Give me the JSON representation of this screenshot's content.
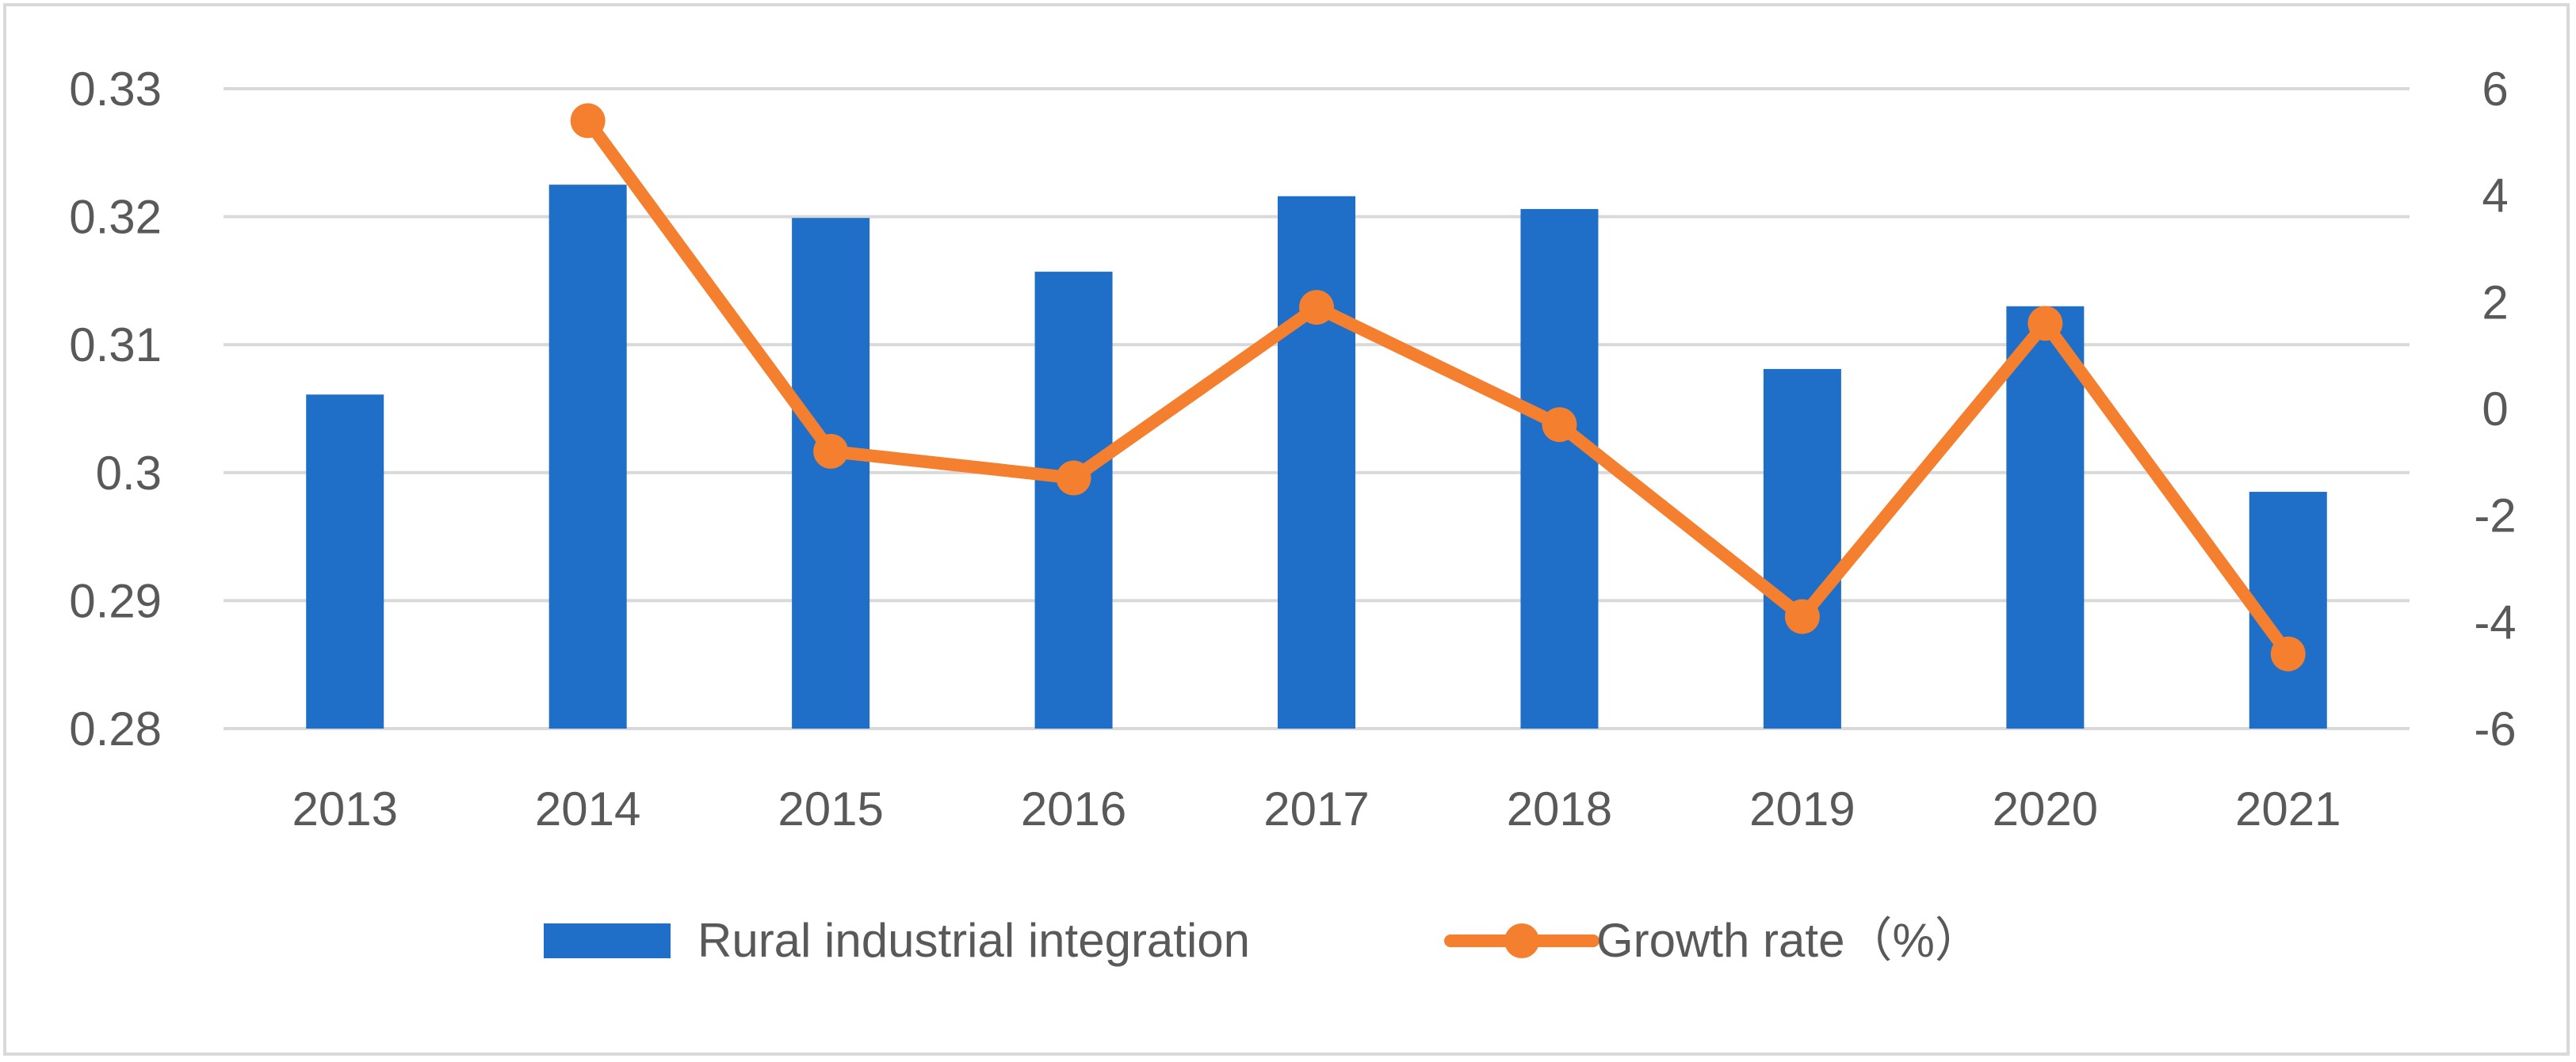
{
  "chart_data": {
    "type": "bar+line",
    "categories": [
      "2013",
      "2014",
      "2015",
      "2016",
      "2017",
      "2018",
      "2019",
      "2020",
      "2021"
    ],
    "series": [
      {
        "name": "Rural industrial integration",
        "type": "bar",
        "axis": "left",
        "color": "#1f6fc8",
        "values": [
          0.3061,
          0.3225,
          0.3199,
          0.3157,
          0.3216,
          0.3206,
          0.3081,
          0.313,
          0.2985
        ]
      },
      {
        "name": "Growth rate（%）",
        "type": "line",
        "axis": "right",
        "color": "#f47f2f",
        "values": [
          null,
          5.4,
          -0.8,
          -1.3,
          1.9,
          -0.3,
          -3.9,
          1.6,
          -4.6
        ]
      }
    ],
    "y_left": {
      "min": 0.28,
      "max": 0.33,
      "ticks": [
        "0.28",
        "0.29",
        "0.3",
        "0.31",
        "0.32",
        "0.33"
      ],
      "tick_values": [
        0.28,
        0.29,
        0.3,
        0.31,
        0.32,
        0.33
      ]
    },
    "y_right": {
      "min": -6,
      "max": 6,
      "ticks": [
        "-6",
        "-4",
        "-2",
        "0",
        "2",
        "4",
        "6"
      ],
      "tick_values": [
        -6,
        -4,
        -2,
        0,
        2,
        4,
        6
      ]
    },
    "grid": true,
    "legend_position": "bottom-center",
    "title": ""
  }
}
